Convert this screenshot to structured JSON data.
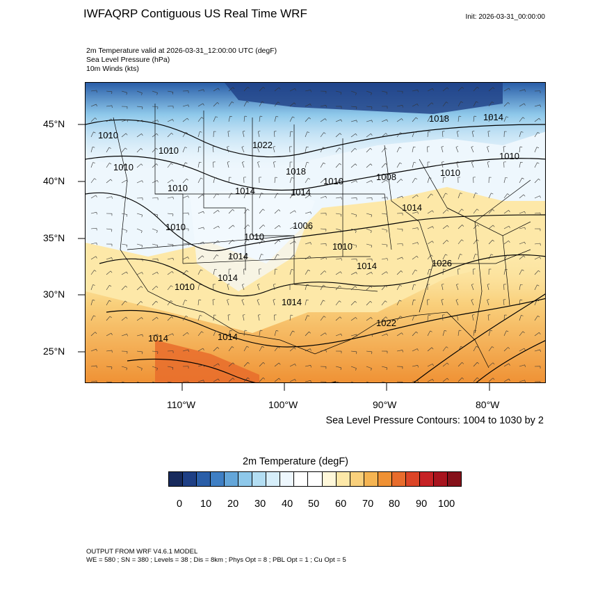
{
  "header": {
    "title": "IWFAQRP Contiguous US Real Time WRF",
    "init": "Init: 2026-03-31_00:00:00",
    "subtitle_lines": [
      "2m Temperature valid at 2026-03-31_12:00:00 UTC   (degF)",
      "Sea Level Pressure   (hPa)",
      "10m Winds   (kts)"
    ]
  },
  "map": {
    "lat_labels": [
      "45°N",
      "40°N",
      "35°N",
      "30°N",
      "25°N"
    ],
    "lon_labels": [
      "110°W",
      "100°W",
      "90°W",
      "80°W"
    ],
    "contour_labels": [
      "1010",
      "1010",
      "1010",
      "1022",
      "1018",
      "1018",
      "1014",
      "1010",
      "1008",
      "1010",
      "1010",
      "1014",
      "1010",
      "1006",
      "1014",
      "1010",
      "1010",
      "1014",
      "1010",
      "1014",
      "1014",
      "1026",
      "1010",
      "1014",
      "1014",
      "1014",
      "1022",
      "1014"
    ]
  },
  "contour_note": "Sea Level Pressure Contours: 1004 to 1030 by 2",
  "colorbar": {
    "title": "2m Temperature  (degF)",
    "labels": [
      "0",
      "10",
      "20",
      "30",
      "40",
      "50",
      "60",
      "70",
      "80",
      "90",
      "100"
    ],
    "colors": [
      "#172a5c",
      "#1e3f85",
      "#2a5ea8",
      "#3f7fc4",
      "#64a6d9",
      "#8ec8ea",
      "#b3def3",
      "#d6eefa",
      "#eef7fd",
      "#ffffff",
      "#ffffff",
      "#fff8da",
      "#fde8a8",
      "#f9d07c",
      "#f5b452",
      "#ef9134",
      "#e86c2c",
      "#dc4527",
      "#c62225",
      "#a8141e",
      "#85111a"
    ]
  },
  "footer": {
    "line1": "OUTPUT FROM WRF V4.6.1 MODEL",
    "line2": "WE = 580 ; SN = 380 ; Levels = 38 ; Dis = 8km ; Phys Opt = 8 ; PBL Opt = 1 ; Cu Opt = 5"
  }
}
